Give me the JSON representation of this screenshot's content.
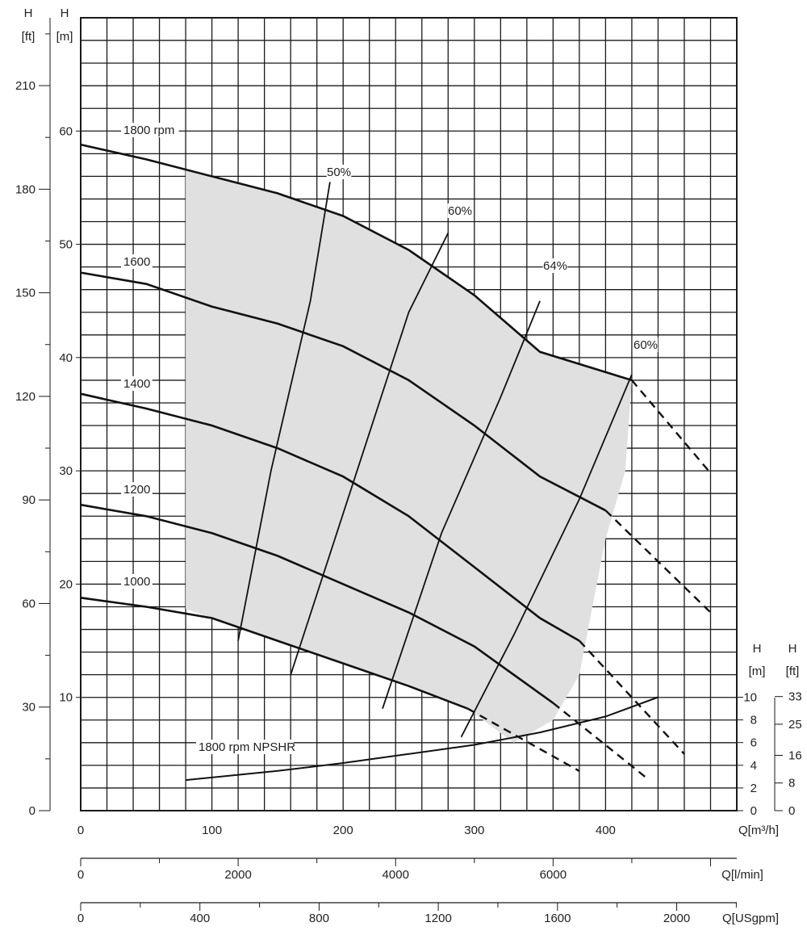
{
  "chart_data": {
    "type": "line",
    "x_axes": [
      {
        "label": "Q[m³/h]",
        "range": [
          0,
          500
        ],
        "tick_labels": [
          "0",
          "100",
          "200",
          "300",
          "400"
        ]
      },
      {
        "label": "Q[l/min]",
        "tick_labels": [
          "0",
          "2000",
          "4000",
          "6000"
        ]
      },
      {
        "label": "Q[USgpm]",
        "tick_labels": [
          "0",
          "400",
          "800",
          "1200",
          "1600",
          "2000"
        ]
      }
    ],
    "y_axes": {
      "head_m": {
        "label_top": "H",
        "label_unit": "[m]",
        "range": [
          0,
          70
        ],
        "tick_labels": [
          "10",
          "20",
          "30",
          "40",
          "50",
          "60"
        ]
      },
      "head_ft": {
        "label_top": "H",
        "label_unit": "[ft]",
        "tick_labels": [
          "0",
          "30",
          "60",
          "90",
          "120",
          "150",
          "180",
          "210"
        ]
      },
      "npsh_m": {
        "label_top": "H",
        "label_unit": "[m]",
        "range": [
          0,
          10
        ],
        "tick_labels": [
          "0",
          "2",
          "4",
          "6",
          "8",
          "10"
        ]
      },
      "npsh_ft": {
        "label_top": "H",
        "label_unit": "[ft]",
        "tick_labels": [
          "0",
          "8",
          "16",
          "25",
          "33"
        ]
      }
    },
    "grid": true,
    "series": [
      {
        "name": "1800 rpm",
        "x": [
          0,
          50,
          100,
          150,
          200,
          250,
          300,
          350,
          420
        ],
        "y": [
          58.8,
          57.5,
          56.0,
          54.5,
          52.5,
          49.5,
          45.5,
          40.5,
          38.0
        ],
        "dashed_x": [
          420,
          480
        ],
        "dashed_y": [
          38.0,
          29.8
        ]
      },
      {
        "name": "1600",
        "x": [
          0,
          50,
          100,
          150,
          200,
          250,
          300,
          350,
          400
        ],
        "y": [
          47.5,
          46.5,
          44.5,
          43.0,
          41.0,
          38.0,
          34.0,
          29.5,
          26.5
        ],
        "dashed_x": [
          400,
          480
        ],
        "dashed_y": [
          26.5,
          17.5
        ]
      },
      {
        "name": "1400",
        "x": [
          0,
          50,
          100,
          150,
          200,
          250,
          300,
          350,
          380
        ],
        "y": [
          36.8,
          35.5,
          34.0,
          32.0,
          29.5,
          26.0,
          21.5,
          17.0,
          15.0
        ],
        "dashed_x": [
          380,
          460
        ],
        "dashed_y": [
          15.0,
          5.0
        ]
      },
      {
        "name": "1200",
        "x": [
          0,
          50,
          100,
          150,
          200,
          250,
          300,
          360
        ],
        "y": [
          27.0,
          26.0,
          24.5,
          22.5,
          20.0,
          17.5,
          14.5,
          9.5
        ],
        "dashed_x": [
          360,
          430
        ],
        "dashed_y": [
          9.5,
          3.0
        ]
      },
      {
        "name": "1000",
        "x": [
          0,
          50,
          100,
          150,
          200,
          250,
          295
        ],
        "y": [
          18.8,
          18.0,
          17.0,
          15.0,
          13.0,
          11.0,
          9.0
        ],
        "dashed_x": [
          295,
          380
        ],
        "dashed_y": [
          9.0,
          3.5
        ]
      },
      {
        "name": "1800 rpm NPSHR",
        "axis": "npsh_m",
        "x": [
          80,
          150,
          200,
          250,
          300,
          350,
          400,
          440
        ],
        "y": [
          2.7,
          3.5,
          4.2,
          5.0,
          5.8,
          6.9,
          8.3,
          10.0
        ]
      }
    ],
    "efficiency_lines": [
      {
        "label": "50%",
        "x": [
          120,
          145,
          175,
          190
        ],
        "y": [
          15.0,
          30.0,
          45.0,
          55.5
        ]
      },
      {
        "label": "60%",
        "x": [
          160,
          205,
          250,
          280
        ],
        "y": [
          12.0,
          28.0,
          44.0,
          51.0
        ]
      },
      {
        "label": "64%",
        "x": [
          230,
          275,
          320,
          350
        ],
        "y": [
          9.0,
          24.5,
          36.5,
          45.0
        ]
      },
      {
        "label": "60%",
        "x": [
          290,
          330,
          380,
          420
        ],
        "y": [
          6.5,
          15.5,
          27.5,
          38.5
        ]
      }
    ],
    "shaded_region_labelled": false
  },
  "colors": {
    "background": "#ffffff",
    "grid": "#1a1a1a",
    "curve": "#111111",
    "shaded": "#e0e0e0"
  }
}
